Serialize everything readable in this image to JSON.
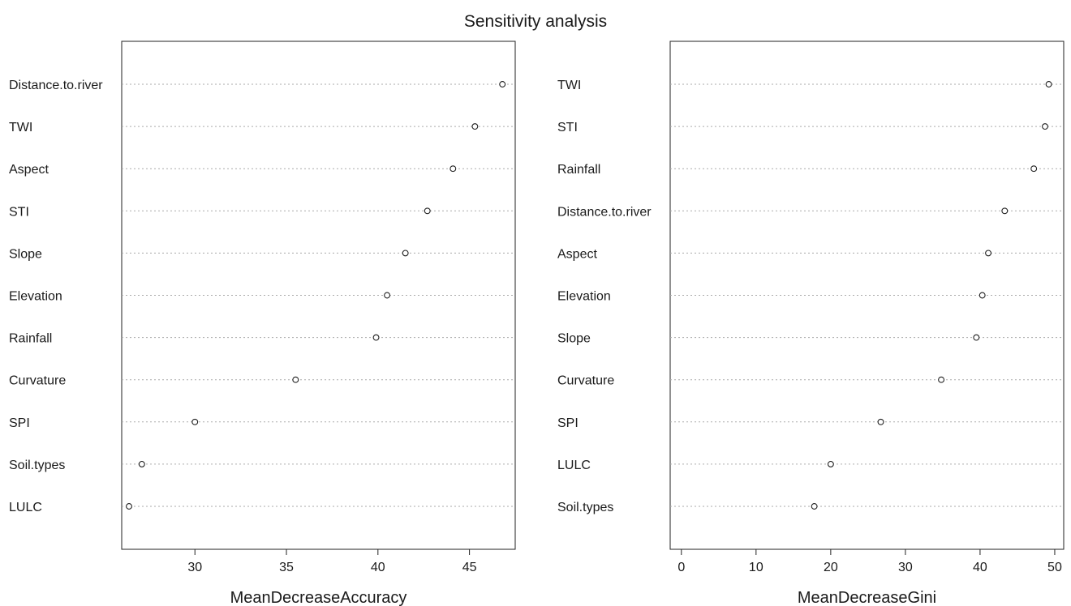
{
  "title": "Sensitivity analysis",
  "chart_data": [
    {
      "type": "scatter",
      "subtype": "dotchart",
      "xlabel": "MeanDecreaseAccuracy",
      "ylabel": "",
      "xlim": [
        26.0,
        47.5
      ],
      "xticks": [
        30,
        35,
        40,
        45
      ],
      "grid": "dotted horizontal lines",
      "categories": [
        "Distance.to.river",
        "TWI",
        "Aspect",
        "STI",
        "Slope",
        "Elevation",
        "Rainfall",
        "Curvature",
        "SPI",
        "Soil.types",
        "LULC"
      ],
      "values": [
        46.8,
        45.3,
        44.1,
        42.7,
        41.5,
        40.5,
        39.9,
        35.5,
        30.0,
        27.1,
        26.4
      ]
    },
    {
      "type": "scatter",
      "subtype": "dotchart",
      "xlabel": "MeanDecreaseGini",
      "ylabel": "",
      "xlim": [
        -1.5,
        51.2
      ],
      "xticks": [
        0,
        10,
        20,
        30,
        40,
        50
      ],
      "grid": "dotted horizontal lines",
      "categories": [
        "TWI",
        "STI",
        "Rainfall",
        "Distance.to.river",
        "Aspect",
        "Elevation",
        "Slope",
        "Curvature",
        "SPI",
        "LULC",
        "Soil.types"
      ],
      "values": [
        49.2,
        48.7,
        47.2,
        43.3,
        41.1,
        40.3,
        39.5,
        34.8,
        26.7,
        20.0,
        17.8
      ]
    }
  ]
}
